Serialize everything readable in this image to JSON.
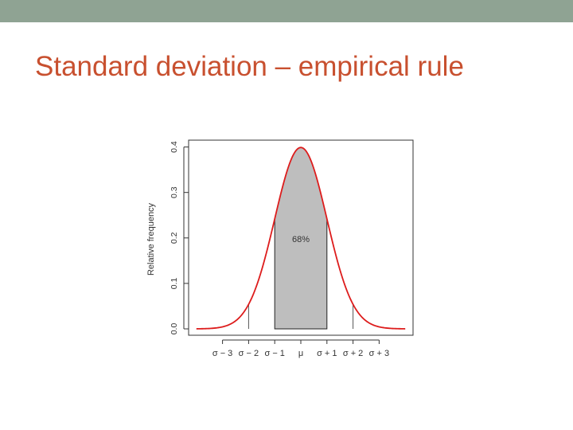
{
  "slide": {
    "title": "Standard deviation – empirical rule"
  },
  "colors": {
    "topbar": "#8fa393",
    "title": "#c8502f",
    "curve": "#dd1c1c",
    "shade": "#bebebe"
  },
  "chart_data": {
    "type": "area",
    "distribution": "standard normal density",
    "title": "",
    "xlabel": "",
    "ylabel": "Relative frequency",
    "xlim": [
      -4,
      4
    ],
    "ylim": [
      0,
      0.4
    ],
    "yticks": [
      0.0,
      0.1,
      0.2,
      0.3,
      0.4
    ],
    "ytick_labels": [
      "0.0",
      "0.1",
      "0.2",
      "0.3",
      "0.4"
    ],
    "xticks": [
      -3,
      -2,
      -1,
      0,
      1,
      2,
      3
    ],
    "xtick_labels": [
      "σ − 3",
      "σ − 2",
      "σ − 1",
      "μ",
      "σ + 1",
      "σ + 2",
      "σ + 3"
    ],
    "curve_x_range": [
      -4,
      4
    ],
    "mean": 0,
    "sd": 1,
    "peak_value": 0.399,
    "shaded_region": {
      "from": -1,
      "to": 1,
      "label": "68%"
    },
    "vertical_markers": [
      -2,
      2
    ],
    "grid": false,
    "legend": "none"
  }
}
